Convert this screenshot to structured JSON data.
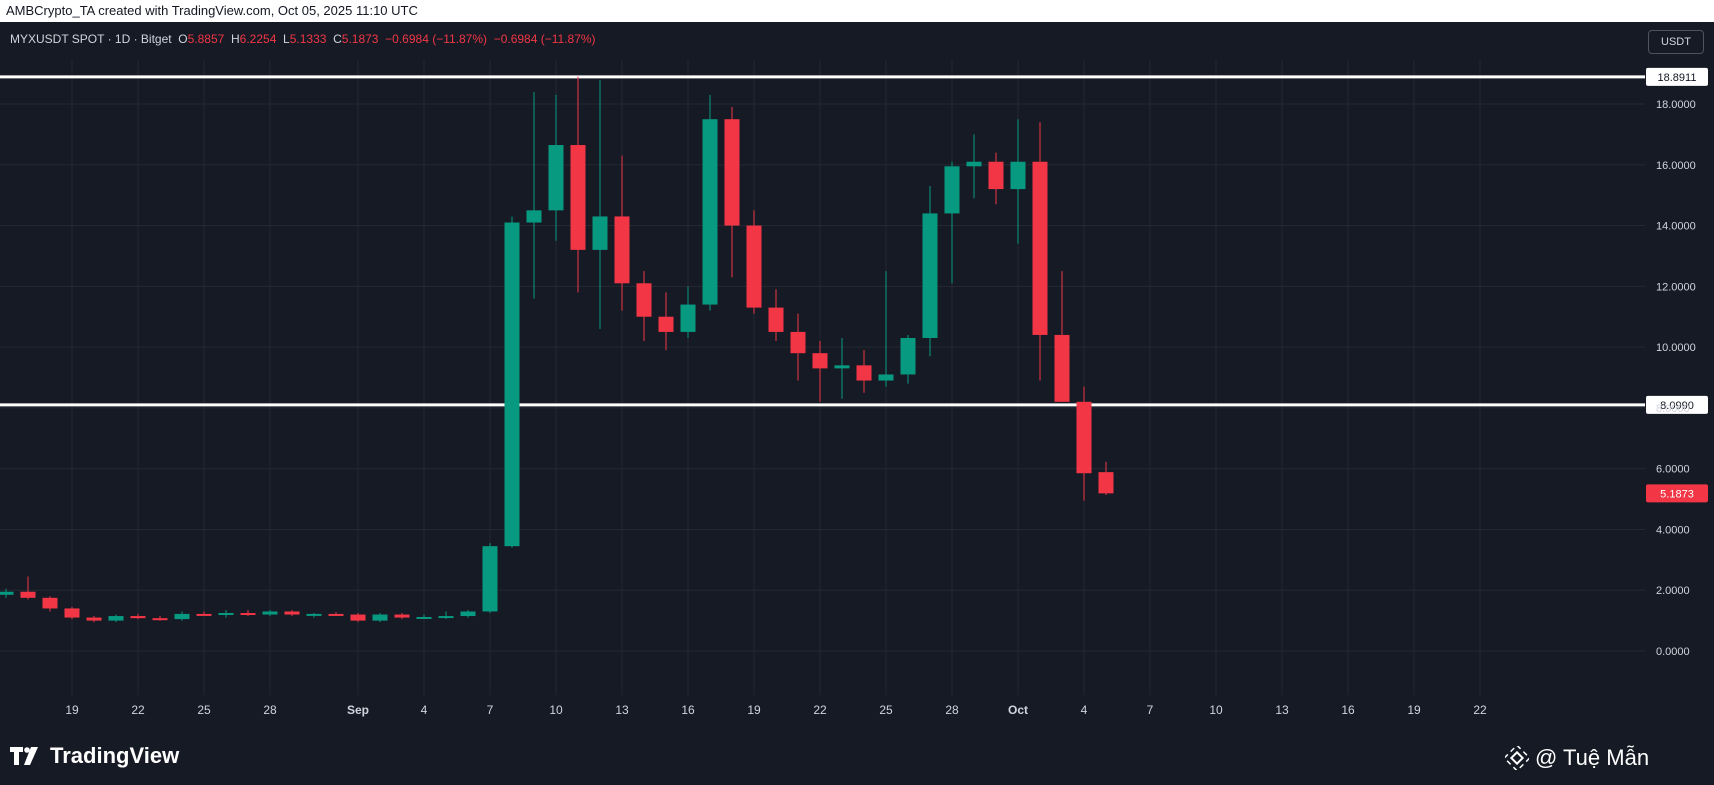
{
  "header": {
    "text": "AMBCrypto_TA created with TradingView.com, Oct 05, 2025 11:10 UTC"
  },
  "legend": {
    "symbol": "MYXUSDT SPOT · 1D · Bitget",
    "o_label": "O",
    "o_value": "5.8857",
    "h_label": "H",
    "h_value": "6.2254",
    "l_label": "L",
    "l_value": "5.1333",
    "c_label": "C",
    "c_value": "5.1873",
    "change": "−0.6984 (−11.87%)",
    "change2": "−0.6984 (−11.87%)"
  },
  "currency_button": "USDT",
  "branding": {
    "logo_text": "TradingView",
    "watermark": "@ Tuệ Mẫn"
  },
  "colors": {
    "up": "#089981",
    "down": "#f23645",
    "background": "#161a25",
    "grid": "#242833",
    "axis_text": "#d1d4dc",
    "level_line": "#ffffff"
  },
  "chart_data": {
    "type": "candlestick",
    "y_axis": {
      "ticks": [
        "0.0000",
        "2.0000",
        "4.0000",
        "6.0000",
        "8.0000",
        "10.0000",
        "12.0000",
        "14.0000",
        "16.0000",
        "18.0000"
      ],
      "range": [
        -0.9,
        19.4
      ]
    },
    "x_axis": {
      "ticks": [
        {
          "label": "19",
          "day": 0
        },
        {
          "label": "22",
          "day": 3
        },
        {
          "label": "25",
          "day": 6
        },
        {
          "label": "28",
          "day": 9
        },
        {
          "label": "Sep",
          "day": 13,
          "bold": true
        },
        {
          "label": "4",
          "day": 16
        },
        {
          "label": "7",
          "day": 19
        },
        {
          "label": "10",
          "day": 22
        },
        {
          "label": "13",
          "day": 25
        },
        {
          "label": "16",
          "day": 28
        },
        {
          "label": "19",
          "day": 31
        },
        {
          "label": "22",
          "day": 34
        },
        {
          "label": "25",
          "day": 37
        },
        {
          "label": "28",
          "day": 40
        },
        {
          "label": "Oct",
          "day": 43,
          "bold": true
        },
        {
          "label": "4",
          "day": 46
        },
        {
          "label": "7",
          "day": 49
        },
        {
          "label": "10",
          "day": 52
        },
        {
          "label": "13",
          "day": 55
        },
        {
          "label": "16",
          "day": 58
        },
        {
          "label": "19",
          "day": 61
        },
        {
          "label": "22",
          "day": 64
        }
      ]
    },
    "levels": [
      {
        "value": 18.8911,
        "label": "18.8911"
      },
      {
        "value": 8.099,
        "label": "8.0990"
      }
    ],
    "last_price": {
      "value": 5.1873,
      "label": "5.1873"
    },
    "candles": [
      {
        "day": -3,
        "o": 1.85,
        "h": 2.05,
        "l": 1.75,
        "c": 1.95
      },
      {
        "day": -2,
        "o": 1.95,
        "h": 2.45,
        "l": 1.7,
        "c": 1.75
      },
      {
        "day": -1,
        "o": 1.75,
        "h": 1.8,
        "l": 1.3,
        "c": 1.4
      },
      {
        "day": 0,
        "o": 1.4,
        "h": 1.45,
        "l": 1.05,
        "c": 1.1
      },
      {
        "day": 1,
        "o": 1.1,
        "h": 1.15,
        "l": 0.95,
        "c": 1.0
      },
      {
        "day": 2,
        "o": 1.0,
        "h": 1.2,
        "l": 0.95,
        "c": 1.15
      },
      {
        "day": 3,
        "o": 1.15,
        "h": 1.22,
        "l": 1.05,
        "c": 1.08
      },
      {
        "day": 4,
        "o": 1.08,
        "h": 1.15,
        "l": 1.0,
        "c": 1.05
      },
      {
        "day": 5,
        "o": 1.05,
        "h": 1.3,
        "l": 1.0,
        "c": 1.22
      },
      {
        "day": 6,
        "o": 1.22,
        "h": 1.3,
        "l": 1.15,
        "c": 1.2
      },
      {
        "day": 7,
        "o": 1.2,
        "h": 1.35,
        "l": 1.1,
        "c": 1.25
      },
      {
        "day": 8,
        "o": 1.25,
        "h": 1.35,
        "l": 1.15,
        "c": 1.2
      },
      {
        "day": 9,
        "o": 1.2,
        "h": 1.35,
        "l": 1.15,
        "c": 1.3
      },
      {
        "day": 10,
        "o": 1.3,
        "h": 1.35,
        "l": 1.15,
        "c": 1.2
      },
      {
        "day": 11,
        "o": 1.2,
        "h": 1.25,
        "l": 1.1,
        "c": 1.22
      },
      {
        "day": 12,
        "o": 1.22,
        "h": 1.28,
        "l": 1.15,
        "c": 1.2
      },
      {
        "day": 13,
        "o": 1.2,
        "h": 1.25,
        "l": 0.95,
        "c": 1.0
      },
      {
        "day": 14,
        "o": 1.0,
        "h": 1.25,
        "l": 0.95,
        "c": 1.2
      },
      {
        "day": 15,
        "o": 1.2,
        "h": 1.25,
        "l": 1.05,
        "c": 1.1
      },
      {
        "day": 16,
        "o": 1.1,
        "h": 1.2,
        "l": 1.05,
        "c": 1.12
      },
      {
        "day": 17,
        "o": 1.12,
        "h": 1.3,
        "l": 1.05,
        "c": 1.15
      },
      {
        "day": 18,
        "o": 1.15,
        "h": 1.35,
        "l": 1.1,
        "c": 1.3
      },
      {
        "day": 19,
        "o": 1.3,
        "h": 3.55,
        "l": 1.25,
        "c": 3.45
      },
      {
        "day": 20,
        "o": 3.45,
        "h": 14.3,
        "l": 3.4,
        "c": 14.1
      },
      {
        "day": 21,
        "o": 14.1,
        "h": 18.4,
        "l": 11.6,
        "c": 14.5
      },
      {
        "day": 22,
        "o": 14.5,
        "h": 18.3,
        "l": 13.5,
        "c": 16.65
      },
      {
        "day": 23,
        "o": 16.65,
        "h": 18.9,
        "l": 11.8,
        "c": 13.2
      },
      {
        "day": 24,
        "o": 13.2,
        "h": 18.8,
        "l": 10.6,
        "c": 14.3
      },
      {
        "day": 25,
        "o": 14.3,
        "h": 16.3,
        "l": 11.2,
        "c": 12.1
      },
      {
        "day": 26,
        "o": 12.1,
        "h": 12.5,
        "l": 10.2,
        "c": 11.0
      },
      {
        "day": 27,
        "o": 11.0,
        "h": 11.8,
        "l": 9.9,
        "c": 10.5
      },
      {
        "day": 28,
        "o": 10.5,
        "h": 12.0,
        "l": 10.3,
        "c": 11.4
      },
      {
        "day": 29,
        "o": 11.4,
        "h": 18.3,
        "l": 11.2,
        "c": 17.5
      },
      {
        "day": 30,
        "o": 17.5,
        "h": 17.9,
        "l": 12.3,
        "c": 14.0
      },
      {
        "day": 31,
        "o": 14.0,
        "h": 14.5,
        "l": 11.1,
        "c": 11.3
      },
      {
        "day": 32,
        "o": 11.3,
        "h": 11.9,
        "l": 10.2,
        "c": 10.5
      },
      {
        "day": 33,
        "o": 10.5,
        "h": 11.1,
        "l": 8.9,
        "c": 9.8
      },
      {
        "day": 34,
        "o": 9.8,
        "h": 10.2,
        "l": 8.2,
        "c": 9.3
      },
      {
        "day": 35,
        "o": 9.3,
        "h": 10.3,
        "l": 8.3,
        "c": 9.4
      },
      {
        "day": 36,
        "o": 9.4,
        "h": 9.9,
        "l": 8.5,
        "c": 8.9
      },
      {
        "day": 37,
        "o": 8.9,
        "h": 12.5,
        "l": 8.7,
        "c": 9.1
      },
      {
        "day": 38,
        "o": 9.1,
        "h": 10.4,
        "l": 8.8,
        "c": 10.3
      },
      {
        "day": 39,
        "o": 10.3,
        "h": 15.3,
        "l": 9.7,
        "c": 14.4
      },
      {
        "day": 40,
        "o": 14.4,
        "h": 16.1,
        "l": 12.1,
        "c": 15.95
      },
      {
        "day": 41,
        "o": 15.95,
        "h": 17.0,
        "l": 14.9,
        "c": 16.1
      },
      {
        "day": 42,
        "o": 16.1,
        "h": 16.4,
        "l": 14.7,
        "c": 15.2
      },
      {
        "day": 43,
        "o": 15.2,
        "h": 17.5,
        "l": 13.4,
        "c": 16.1
      },
      {
        "day": 44,
        "o": 16.1,
        "h": 17.4,
        "l": 8.9,
        "c": 10.4
      },
      {
        "day": 45,
        "o": 10.4,
        "h": 12.5,
        "l": 8.2,
        "c": 8.2
      },
      {
        "day": 46,
        "o": 8.2,
        "h": 8.7,
        "l": 4.95,
        "c": 5.85
      },
      {
        "day": 47,
        "o": 5.8857,
        "h": 6.2254,
        "l": 5.1333,
        "c": 5.1873
      }
    ]
  }
}
